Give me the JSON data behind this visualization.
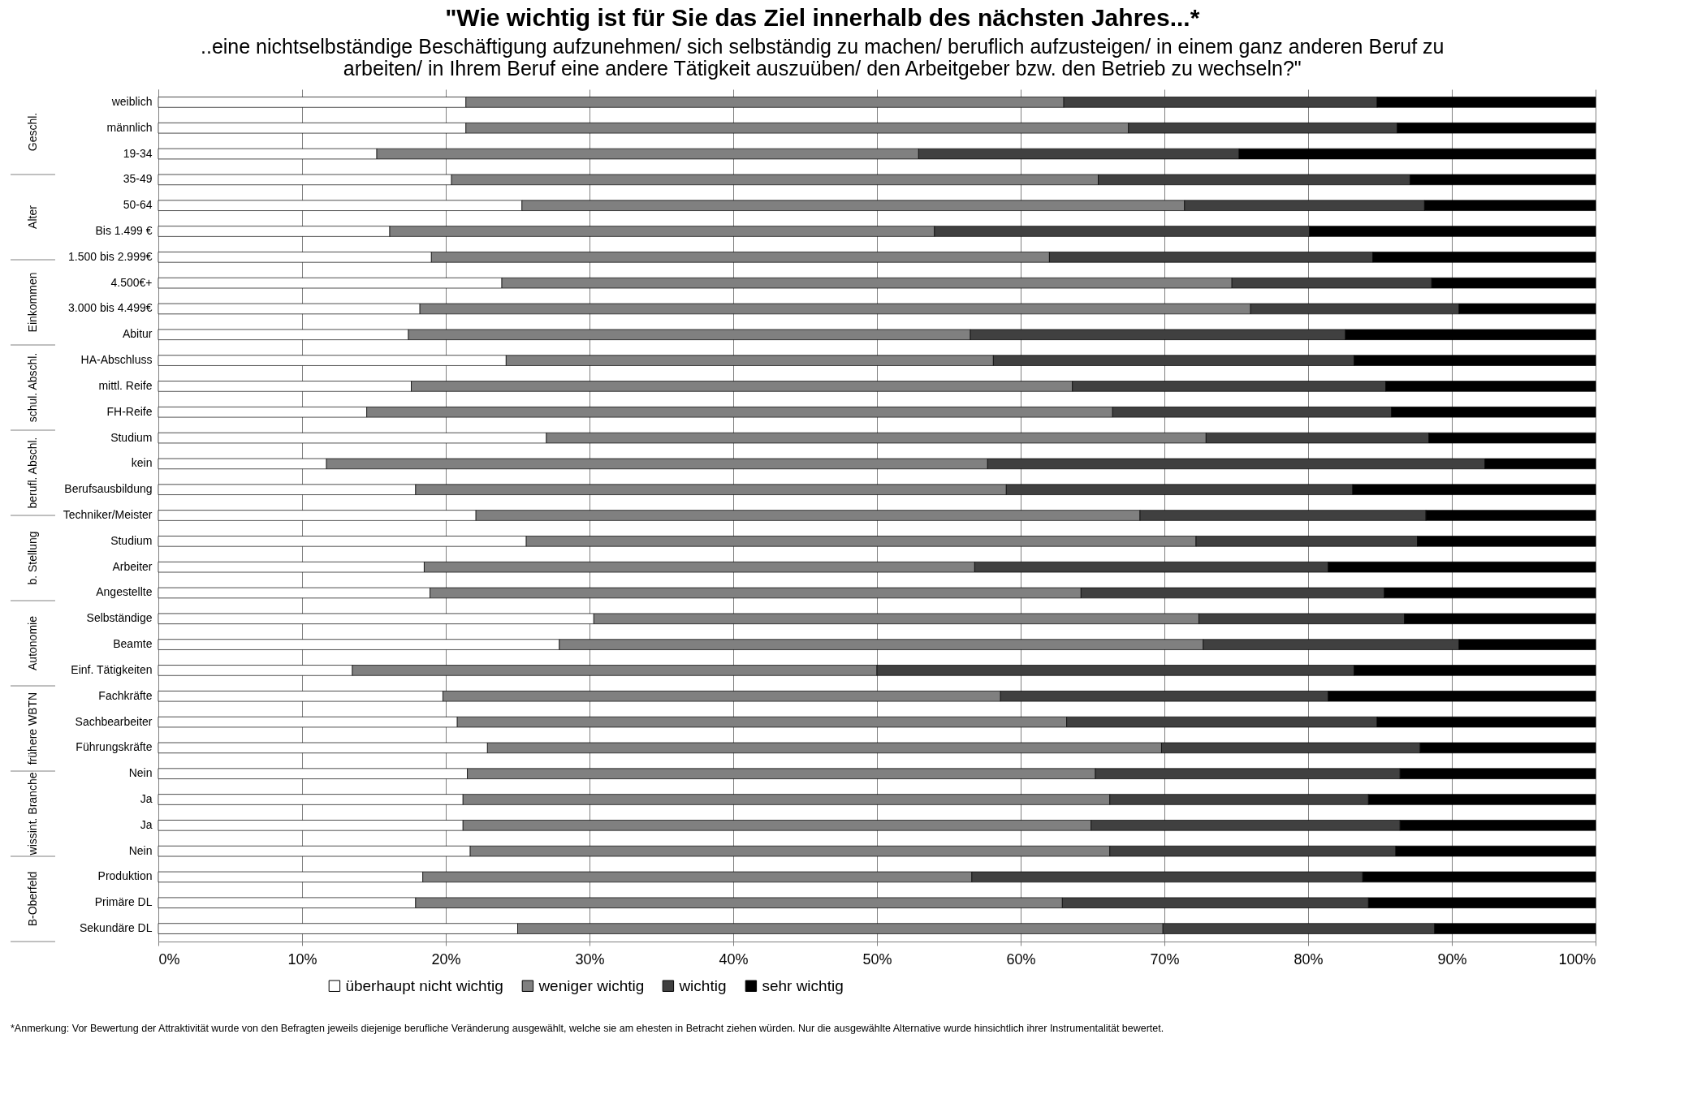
{
  "chart_data": {
    "type": "bar",
    "orientation": "horizontal",
    "stacked": true,
    "title": "\"Wie wichtig ist für Sie das Ziel innerhalb des nächsten Jahres...*",
    "subtitle": "..eine nichtselbständige Beschäftigung aufzunehmen/ sich selbständig zu machen/ beruflich aufzusteigen/ in einem ganz anderen Beruf zu arbeiten/ in Ihrem Beruf eine andere Tätigkeit auszuüben/  den Arbeitgeber bzw. den Betrieb zu wechseln?\"",
    "categories": [
      "weiblich",
      "männlich",
      "19-34",
      "35-49",
      "50-64",
      "Bis 1.499 €",
      "1.500 bis 2.999€",
      "4.500€+",
      "3.000 bis 4.499€",
      "Abitur",
      "HA-Abschluss",
      "mittl. Reife",
      "FH-Reife",
      "Studium",
      "kein",
      "Berufsausbildung",
      "Techniker/Meister",
      "Studium",
      "Arbeiter",
      "Angestellte",
      "Selbständige",
      "Beamte",
      "Einf. Tätigkeiten",
      "Fachkräfte",
      "Sachbearbeiter",
      "Führungskräfte",
      "Nein",
      "Ja",
      "Ja",
      "Nein",
      "Produktion",
      "Primäre DL",
      "Sekundäre DL"
    ],
    "series": [
      {
        "name": "überhaupt nicht wichtig",
        "color": "#ffffff",
        "values": [
          21.4,
          21.4,
          15.2,
          20.4,
          25.3,
          16.1,
          19.0,
          23.9,
          18.2,
          17.4,
          24.2,
          17.6,
          14.5,
          27.0,
          11.7,
          17.9,
          22.1,
          25.6,
          18.5,
          18.9,
          30.3,
          27.9,
          13.5,
          19.8,
          20.8,
          22.9,
          21.5,
          21.2,
          21.2,
          21.7,
          18.4,
          17.9,
          25.0
        ]
      },
      {
        "name": "weniger wichtig",
        "color": "#808080",
        "values": [
          41.6,
          46.1,
          37.7,
          45.0,
          46.1,
          37.9,
          43.0,
          50.8,
          57.8,
          39.1,
          33.9,
          46.0,
          51.9,
          45.9,
          46.0,
          41.1,
          46.2,
          46.6,
          38.3,
          45.3,
          42.1,
          44.8,
          36.5,
          38.8,
          42.4,
          46.9,
          43.7,
          45.0,
          43.7,
          44.5,
          38.2,
          45.0,
          44.9
        ]
      },
      {
        "name": "wichtig",
        "color": "#404040",
        "values": [
          21.8,
          18.7,
          22.3,
          21.7,
          16.7,
          26.1,
          22.5,
          13.9,
          14.5,
          26.1,
          25.1,
          21.8,
          19.4,
          15.5,
          34.6,
          24.1,
          19.9,
          15.4,
          24.6,
          21.1,
          14.3,
          17.8,
          33.2,
          22.8,
          21.6,
          18.0,
          21.2,
          18.0,
          21.5,
          19.9,
          27.2,
          21.3,
          18.9
        ]
      },
      {
        "name": "sehr wichtig",
        "color": "#000000",
        "values": [
          15.2,
          13.8,
          24.8,
          12.9,
          11.9,
          19.9,
          15.5,
          11.4,
          9.5,
          17.4,
          16.8,
          14.6,
          14.2,
          11.6,
          7.7,
          16.9,
          11.8,
          12.4,
          18.6,
          14.7,
          13.3,
          9.5,
          16.8,
          18.6,
          15.2,
          12.2,
          13.6,
          15.8,
          13.6,
          13.9,
          16.2,
          15.8,
          11.2
        ]
      }
    ],
    "xlim": [
      0,
      100
    ],
    "xticks": [
      {
        "value": 0,
        "label": "0%"
      },
      {
        "value": 10,
        "label": "10%"
      },
      {
        "value": 20,
        "label": "20%"
      },
      {
        "value": 30,
        "label": "30%"
      },
      {
        "value": 40,
        "label": "40%"
      },
      {
        "value": 50,
        "label": "50%"
      },
      {
        "value": 60,
        "label": "60%"
      },
      {
        "value": 70,
        "label": "70%"
      },
      {
        "value": 80,
        "label": "80%"
      },
      {
        "value": 90,
        "label": "90%"
      },
      {
        "value": 100,
        "label": "100%"
      }
    ],
    "grid": "x",
    "legend": "bottom",
    "annotations": [
      "Geschl.",
      "Alter",
      "Einkommen",
      "schul. Abschl.",
      "berufl. Abschl.",
      "b. Stellung",
      "Autonomie",
      "frühere WBTN",
      "wissint. Branche",
      "B-Oberfeld",
      "*Anmerkung: Vor Bewertung der Attraktivität wurde von den Befragten jeweils diejenige berufliche Veränderung ausgewählt, welche sie am ehesten in Betracht ziehen würden. Nur die ausgewählte Alternative wurde hinsichtlich ihrer Instrumentalität bewertet."
    ]
  }
}
